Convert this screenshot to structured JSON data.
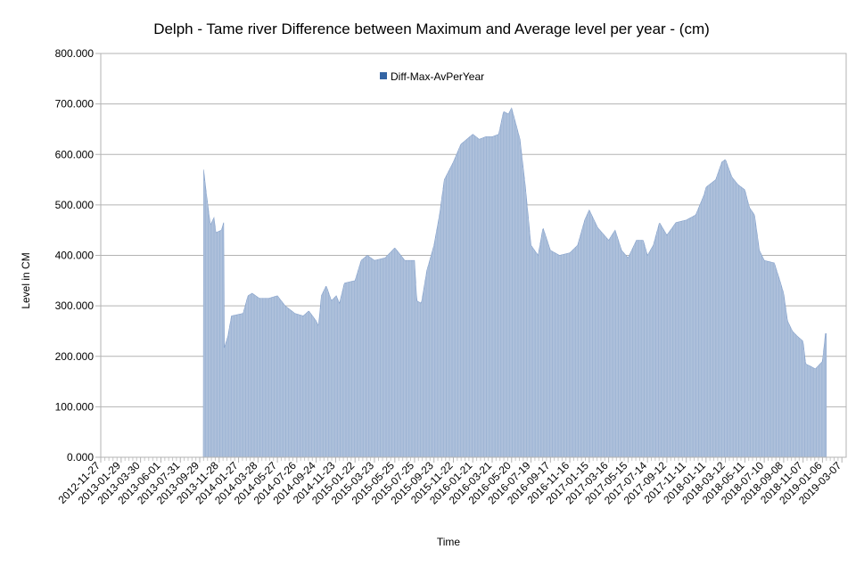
{
  "chart_data": {
    "type": "area",
    "title": "Delph - Tame river Difference between Maximum and Average level per year  - (cm)",
    "xlabel": "Time",
    "ylabel": "Level in CM",
    "ylim": [
      0,
      800
    ],
    "y_ticks": [
      "0.000",
      "100.000",
      "200.000",
      "300.000",
      "400.000",
      "500.000",
      "600.000",
      "700.000",
      "800.000"
    ],
    "grid": "horizontal",
    "legend": {
      "position": "top-left",
      "entries": [
        "Diff-Max-AvPerYear"
      ]
    },
    "color": "#9db4d4",
    "x_tick_labels": [
      "2012-11-27",
      "2013-01-29",
      "2013-03-30",
      "2013-06-01",
      "2013-07-31",
      "2013-09-29",
      "2013-11-28",
      "2014-01-27",
      "2014-03-28",
      "2014-05-27",
      "2014-07-26",
      "2014-09-24",
      "2014-11-23",
      "2015-01-22",
      "2015-03-23",
      "2015-05-25",
      "2015-07-25",
      "2015-09-23",
      "2015-11-22",
      "2016-01-21",
      "2016-03-21",
      "2016-05-20",
      "2016-07-19",
      "2016-09-17",
      "2016-11-16",
      "2017-01-15",
      "2017-03-16",
      "2017-05-15",
      "2017-07-14",
      "2017-09-12",
      "2017-11-11",
      "2018-01-11",
      "2018-03-12",
      "2018-05-11",
      "2018-07-10",
      "2018-09-08",
      "2018-11-07",
      "2019-01-06",
      "2019-03-07"
    ],
    "series": [
      {
        "name": "Diff-Max-AvPerYear",
        "points": [
          [
            "2012-11-27",
            0
          ],
          [
            "2013-10-10",
            0
          ],
          [
            "2013-10-11",
            570
          ],
          [
            "2013-10-20",
            520
          ],
          [
            "2013-11-01",
            460
          ],
          [
            "2013-11-12",
            475
          ],
          [
            "2013-11-18",
            445
          ],
          [
            "2013-12-05",
            450
          ],
          [
            "2013-12-12",
            465
          ],
          [
            "2013-12-13",
            215
          ],
          [
            "2013-12-25",
            240
          ],
          [
            "2014-01-05",
            280
          ],
          [
            "2014-02-10",
            285
          ],
          [
            "2014-02-25",
            320
          ],
          [
            "2014-03-10",
            325
          ],
          [
            "2014-04-01",
            315
          ],
          [
            "2014-05-01",
            315
          ],
          [
            "2014-05-27",
            320
          ],
          [
            "2014-06-20",
            300
          ],
          [
            "2014-07-20",
            285
          ],
          [
            "2014-08-15",
            280
          ],
          [
            "2014-09-01",
            290
          ],
          [
            "2014-09-24",
            270
          ],
          [
            "2014-10-01",
            260
          ],
          [
            "2014-10-10",
            320
          ],
          [
            "2014-10-25",
            340
          ],
          [
            "2014-11-10",
            310
          ],
          [
            "2014-11-25",
            320
          ],
          [
            "2014-12-05",
            305
          ],
          [
            "2014-12-20",
            345
          ],
          [
            "2015-01-22",
            350
          ],
          [
            "2015-02-10",
            390
          ],
          [
            "2015-03-01",
            400
          ],
          [
            "2015-03-23",
            390
          ],
          [
            "2015-04-25",
            395
          ],
          [
            "2015-05-25",
            415
          ],
          [
            "2015-06-25",
            390
          ],
          [
            "2015-07-25",
            390
          ],
          [
            "2015-08-01",
            310
          ],
          [
            "2015-08-15",
            305
          ],
          [
            "2015-09-01",
            370
          ],
          [
            "2015-09-23",
            420
          ],
          [
            "2015-10-10",
            480
          ],
          [
            "2015-10-25",
            550
          ],
          [
            "2015-11-22",
            585
          ],
          [
            "2015-12-15",
            620
          ],
          [
            "2016-01-21",
            640
          ],
          [
            "2016-02-10",
            630
          ],
          [
            "2016-03-01",
            635
          ],
          [
            "2016-03-21",
            635
          ],
          [
            "2016-04-10",
            640
          ],
          [
            "2016-04-25",
            685
          ],
          [
            "2016-05-10",
            680
          ],
          [
            "2016-05-20",
            692
          ],
          [
            "2016-06-15",
            630
          ],
          [
            "2016-07-01",
            540
          ],
          [
            "2016-07-19",
            420
          ],
          [
            "2016-08-10",
            400
          ],
          [
            "2016-08-25",
            455
          ],
          [
            "2016-09-17",
            410
          ],
          [
            "2016-10-15",
            400
          ],
          [
            "2016-11-16",
            405
          ],
          [
            "2016-12-10",
            420
          ],
          [
            "2017-01-01",
            470
          ],
          [
            "2017-01-15",
            490
          ],
          [
            "2017-02-10",
            455
          ],
          [
            "2017-03-16",
            430
          ],
          [
            "2017-04-05",
            450
          ],
          [
            "2017-04-25",
            410
          ],
          [
            "2017-05-15",
            395
          ],
          [
            "2017-06-10",
            430
          ],
          [
            "2017-07-01",
            430
          ],
          [
            "2017-07-14",
            400
          ],
          [
            "2017-08-01",
            420
          ],
          [
            "2017-08-20",
            465
          ],
          [
            "2017-09-12",
            440
          ],
          [
            "2017-10-10",
            465
          ],
          [
            "2017-11-11",
            470
          ],
          [
            "2017-12-10",
            480
          ],
          [
            "2018-01-05",
            520
          ],
          [
            "2018-01-11",
            535
          ],
          [
            "2018-02-10",
            550
          ],
          [
            "2018-03-01",
            585
          ],
          [
            "2018-03-12",
            590
          ],
          [
            "2018-04-01",
            555
          ],
          [
            "2018-04-20",
            540
          ],
          [
            "2018-05-11",
            530
          ],
          [
            "2018-05-25",
            495
          ],
          [
            "2018-06-10",
            480
          ],
          [
            "2018-06-25",
            410
          ],
          [
            "2018-07-10",
            390
          ],
          [
            "2018-08-10",
            385
          ],
          [
            "2018-08-25",
            355
          ],
          [
            "2018-09-08",
            325
          ],
          [
            "2018-09-20",
            270
          ],
          [
            "2018-10-05",
            250
          ],
          [
            "2018-10-20",
            240
          ],
          [
            "2018-11-07",
            230
          ],
          [
            "2018-11-15",
            185
          ],
          [
            "2018-12-01",
            180
          ],
          [
            "2018-12-15",
            175
          ],
          [
            "2019-01-06",
            190
          ],
          [
            "2019-01-15",
            245
          ],
          [
            "2019-01-18",
            245
          ]
        ]
      }
    ]
  }
}
